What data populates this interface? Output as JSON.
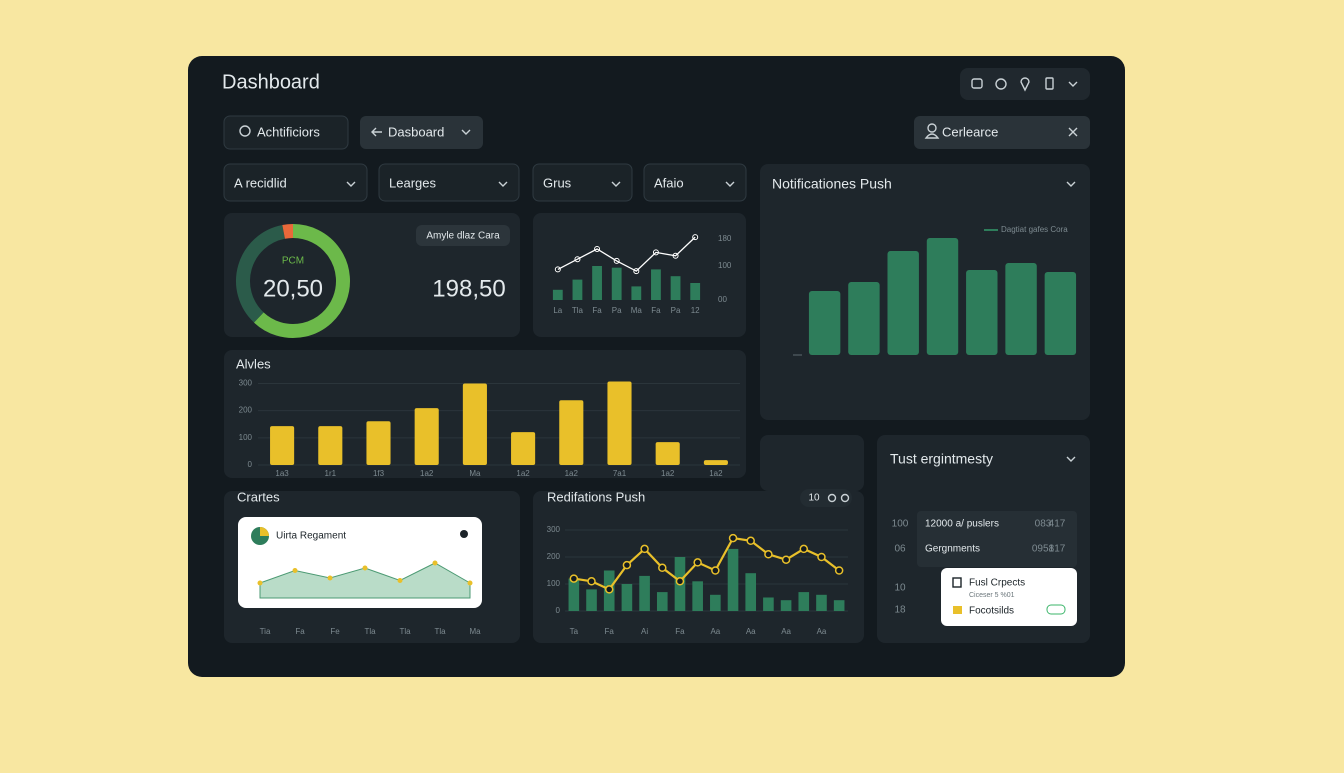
{
  "header": {
    "title": "Dashboard"
  },
  "toolbar": {
    "search": "Achtificiors",
    "back": "Dasboard",
    "user": "Cerlearce"
  },
  "filters": [
    "A recidlid",
    "Learges",
    "Grus",
    "Afaio"
  ],
  "donut": {
    "label": "PCM",
    "value_label": "20,50",
    "values": [
      62,
      35,
      3
    ],
    "colors": [
      "#6cb94a",
      "#2b5b4a",
      "#e8693a"
    ]
  },
  "stat": {
    "chip": "Amyle dlaz Cara",
    "value_label": "198,50"
  },
  "sparkline": {
    "categories": [
      "La",
      "Tla",
      "Fa",
      "Pa",
      "Ma",
      "Fa",
      "Pa",
      "12"
    ],
    "line": [
      90,
      120,
      150,
      115,
      85,
      140,
      130,
      185
    ],
    "bars": [
      30,
      60,
      100,
      95,
      40,
      90,
      70,
      50
    ],
    "ylim": [
      0,
      200
    ],
    "yticks": [
      {
        "value": 0,
        "label": "00"
      },
      100,
      180
    ],
    "color": "#2e7d5b"
  },
  "green_chart": {
    "title": "Notificationes Push",
    "legend": "Dagtiat gafes Cora",
    "values": [
      64,
      73,
      104,
      117,
      85,
      92,
      83
    ],
    "color": "#2e7d5b",
    "ylim": [
      0,
      140
    ]
  },
  "yellow_chart": {
    "title": "Alvles",
    "categories": [
      "1a3",
      "1r1",
      "1f3",
      "1a2",
      "Ma",
      "1a2",
      "1a2",
      "7a1",
      "1a2",
      "1a2"
    ],
    "values": [
      143,
      143,
      161,
      209,
      300,
      121,
      238,
      307,
      84,
      18
    ],
    "ylim": [
      0,
      320
    ],
    "yticks": [
      0,
      100,
      200,
      300
    ],
    "color": "#e9c02a"
  },
  "area_chart": {
    "title": "Crartes",
    "card_title": "Uirta Regament",
    "categories": [
      "Tia",
      "Fa",
      "Fe",
      "Tla",
      "Tla",
      "Tla",
      "Ma"
    ],
    "values": [
      30,
      55,
      40,
      60,
      35,
      70,
      30
    ],
    "ylim": [
      0,
      100
    ],
    "color": "#7fbf9a"
  },
  "combo_chart": {
    "title": "Redifations Push",
    "badge": "10",
    "categories": [
      "Ta",
      null,
      "Fa",
      null,
      "Ai",
      null,
      "Fa",
      null,
      "Aa",
      null,
      "Aa",
      null,
      "Aa",
      null,
      "Aa",
      null
    ],
    "bars": [
      120,
      80,
      150,
      100,
      130,
      70,
      200,
      110,
      60,
      230,
      140,
      50,
      40,
      70,
      60,
      40
    ],
    "line": [
      120,
      110,
      80,
      170,
      230,
      160,
      110,
      180,
      150,
      270,
      260,
      210,
      190,
      230,
      200,
      150
    ],
    "ylim": [
      0,
      300
    ],
    "yticks": [
      0,
      100,
      200,
      300
    ],
    "bar_color": "#2e7d5b",
    "line_color": "#e9c02a"
  },
  "table": {
    "title": "Tust ergintmesty",
    "rows": [
      [
        "100",
        "12000 a/ puslers",
        "083",
        "417"
      ],
      [
        "06",
        "Gergnments",
        "0951",
        "817"
      ],
      [
        "10"
      ],
      [
        "18"
      ]
    ],
    "popup": {
      "title": "Fusl Crpects",
      "subtitle": "Ciceser 5 %01",
      "item": "Focotsilds"
    }
  }
}
